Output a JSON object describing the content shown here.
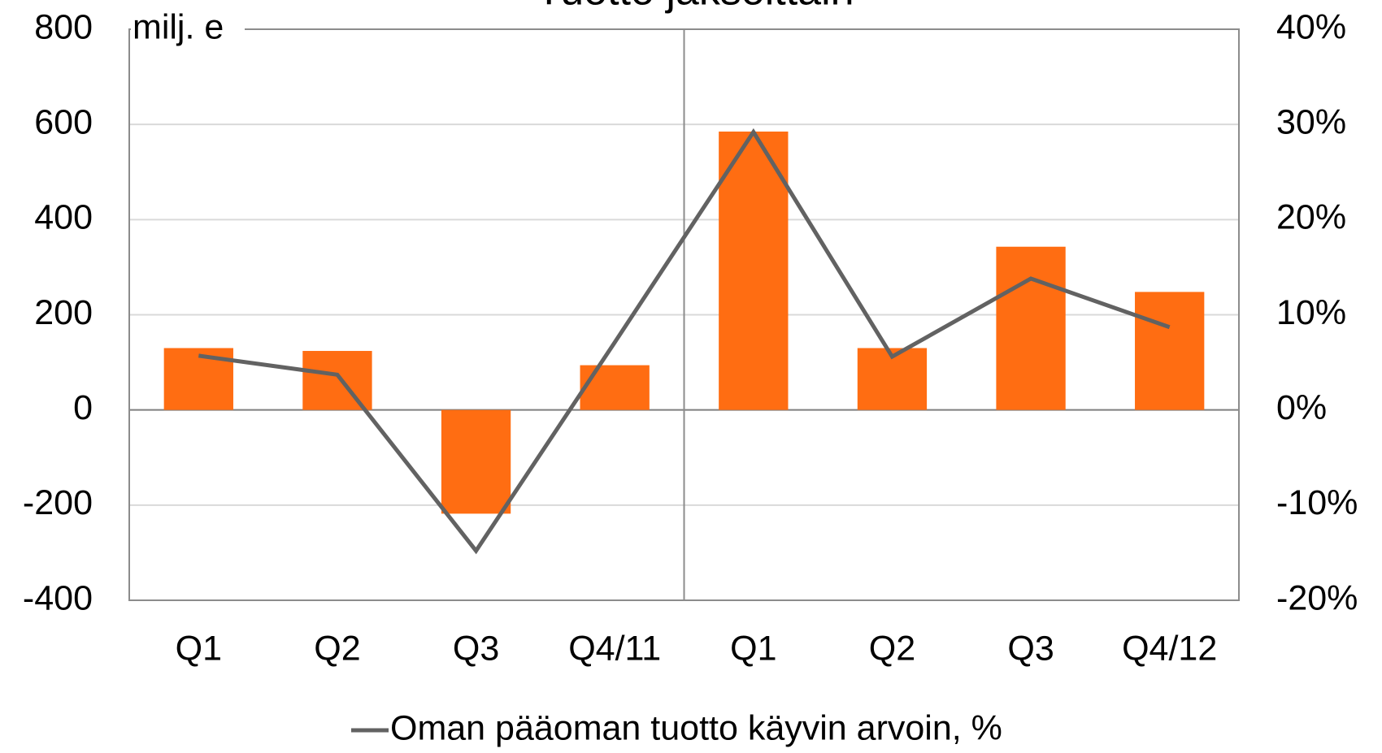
{
  "chart_data": {
    "type": "bar",
    "title": "Tuotto jaksoittain",
    "ylabel": "milj. e",
    "categories": [
      "Q1",
      "Q2",
      "Q3",
      "Q4/11",
      "Q1",
      "Q2",
      "Q3",
      "Q4/12"
    ],
    "series": [
      {
        "type": "bar",
        "color": "#ff6d12",
        "values": [
          130,
          124,
          -218,
          94,
          585,
          130,
          343,
          248
        ]
      },
      {
        "type": "line",
        "name": "Oman pääoman tuotto käyvin arvoin, %",
        "color": "#626262",
        "axis": "y2",
        "values": [
          5.7,
          3.7,
          -14.8,
          7.1,
          29.2,
          5.6,
          13.8,
          8.7
        ]
      }
    ],
    "ylim": [
      -400,
      800
    ],
    "yticks": [
      -400,
      -200,
      0,
      200,
      400,
      600,
      800
    ],
    "y2lim": [
      -20,
      40
    ],
    "y2ticks": [
      {
        "value": -20,
        "label": "-20%"
      },
      {
        "value": -10,
        "label": "-10%"
      },
      {
        "value": 0,
        "label": "0%"
      },
      {
        "value": 10,
        "label": "10%"
      },
      {
        "value": 20,
        "label": "20%"
      },
      {
        "value": 30,
        "label": "30%"
      },
      {
        "value": 40,
        "label": "40%"
      }
    ],
    "grid": true,
    "legend": "bottom"
  }
}
